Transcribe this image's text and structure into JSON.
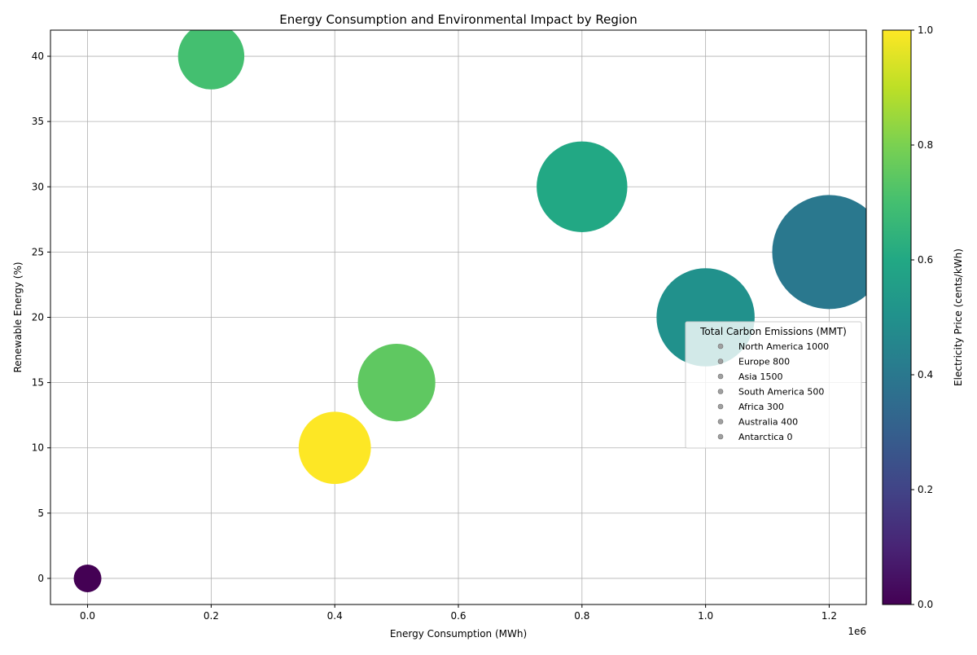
{
  "chart_data": {
    "type": "scatter",
    "title": "Energy Consumption and Environmental Impact by Region",
    "xlabel": "Energy Consumption (MWh)",
    "ylabel": "Renewable Energy (%)",
    "x_offset_label": "1e6",
    "xlim": [
      -60000,
      1260000
    ],
    "ylim": [
      -2,
      42
    ],
    "x_ticks": [
      0,
      200000,
      400000,
      600000,
      800000,
      1000000,
      1200000
    ],
    "x_tick_labels": [
      "0.0",
      "0.2",
      "0.4",
      "0.6",
      "0.8",
      "1.0",
      "1.2"
    ],
    "y_ticks": [
      0,
      5,
      10,
      15,
      20,
      25,
      30,
      35,
      40
    ],
    "y_tick_labels": [
      "0",
      "5",
      "10",
      "15",
      "20",
      "25",
      "30",
      "35",
      "40"
    ],
    "grid": true,
    "colorbar": {
      "label": "Electricity Price (cents/kWh)",
      "range": [
        0,
        1
      ],
      "ticks": [
        0.0,
        0.2,
        0.4,
        0.6,
        0.8,
        1.0
      ],
      "tick_labels": [
        "0.0",
        "0.2",
        "0.4",
        "0.6",
        "0.8",
        "1.0"
      ],
      "colormap": "viridis"
    },
    "legend": {
      "title": "Total Carbon Emissions (MMT)",
      "position": "center-right",
      "entries": [
        "North America 1000",
        "Europe 800",
        "Asia 1500",
        "South America 500",
        "Africa 300",
        "Australia 400",
        "Antarctica 0"
      ]
    },
    "points": [
      {
        "region": "North America",
        "x": 1000000,
        "y": 20,
        "emissions": 1000,
        "color_value": 0.5
      },
      {
        "region": "Europe",
        "x": 800000,
        "y": 30,
        "emissions": 800,
        "color_value": 0.6
      },
      {
        "region": "Asia",
        "x": 1200000,
        "y": 25,
        "emissions": 1500,
        "color_value": 0.4
      },
      {
        "region": "South America",
        "x": 500000,
        "y": 15,
        "emissions": 500,
        "color_value": 0.75
      },
      {
        "region": "Africa",
        "x": 200000,
        "y": 40,
        "emissions": 300,
        "color_value": 0.7
      },
      {
        "region": "Australia",
        "x": 400000,
        "y": 10,
        "emissions": 400,
        "color_value": 1.0
      },
      {
        "region": "Antarctica",
        "x": 0,
        "y": 0,
        "emissions": 0,
        "color_value": 0.0
      }
    ]
  }
}
